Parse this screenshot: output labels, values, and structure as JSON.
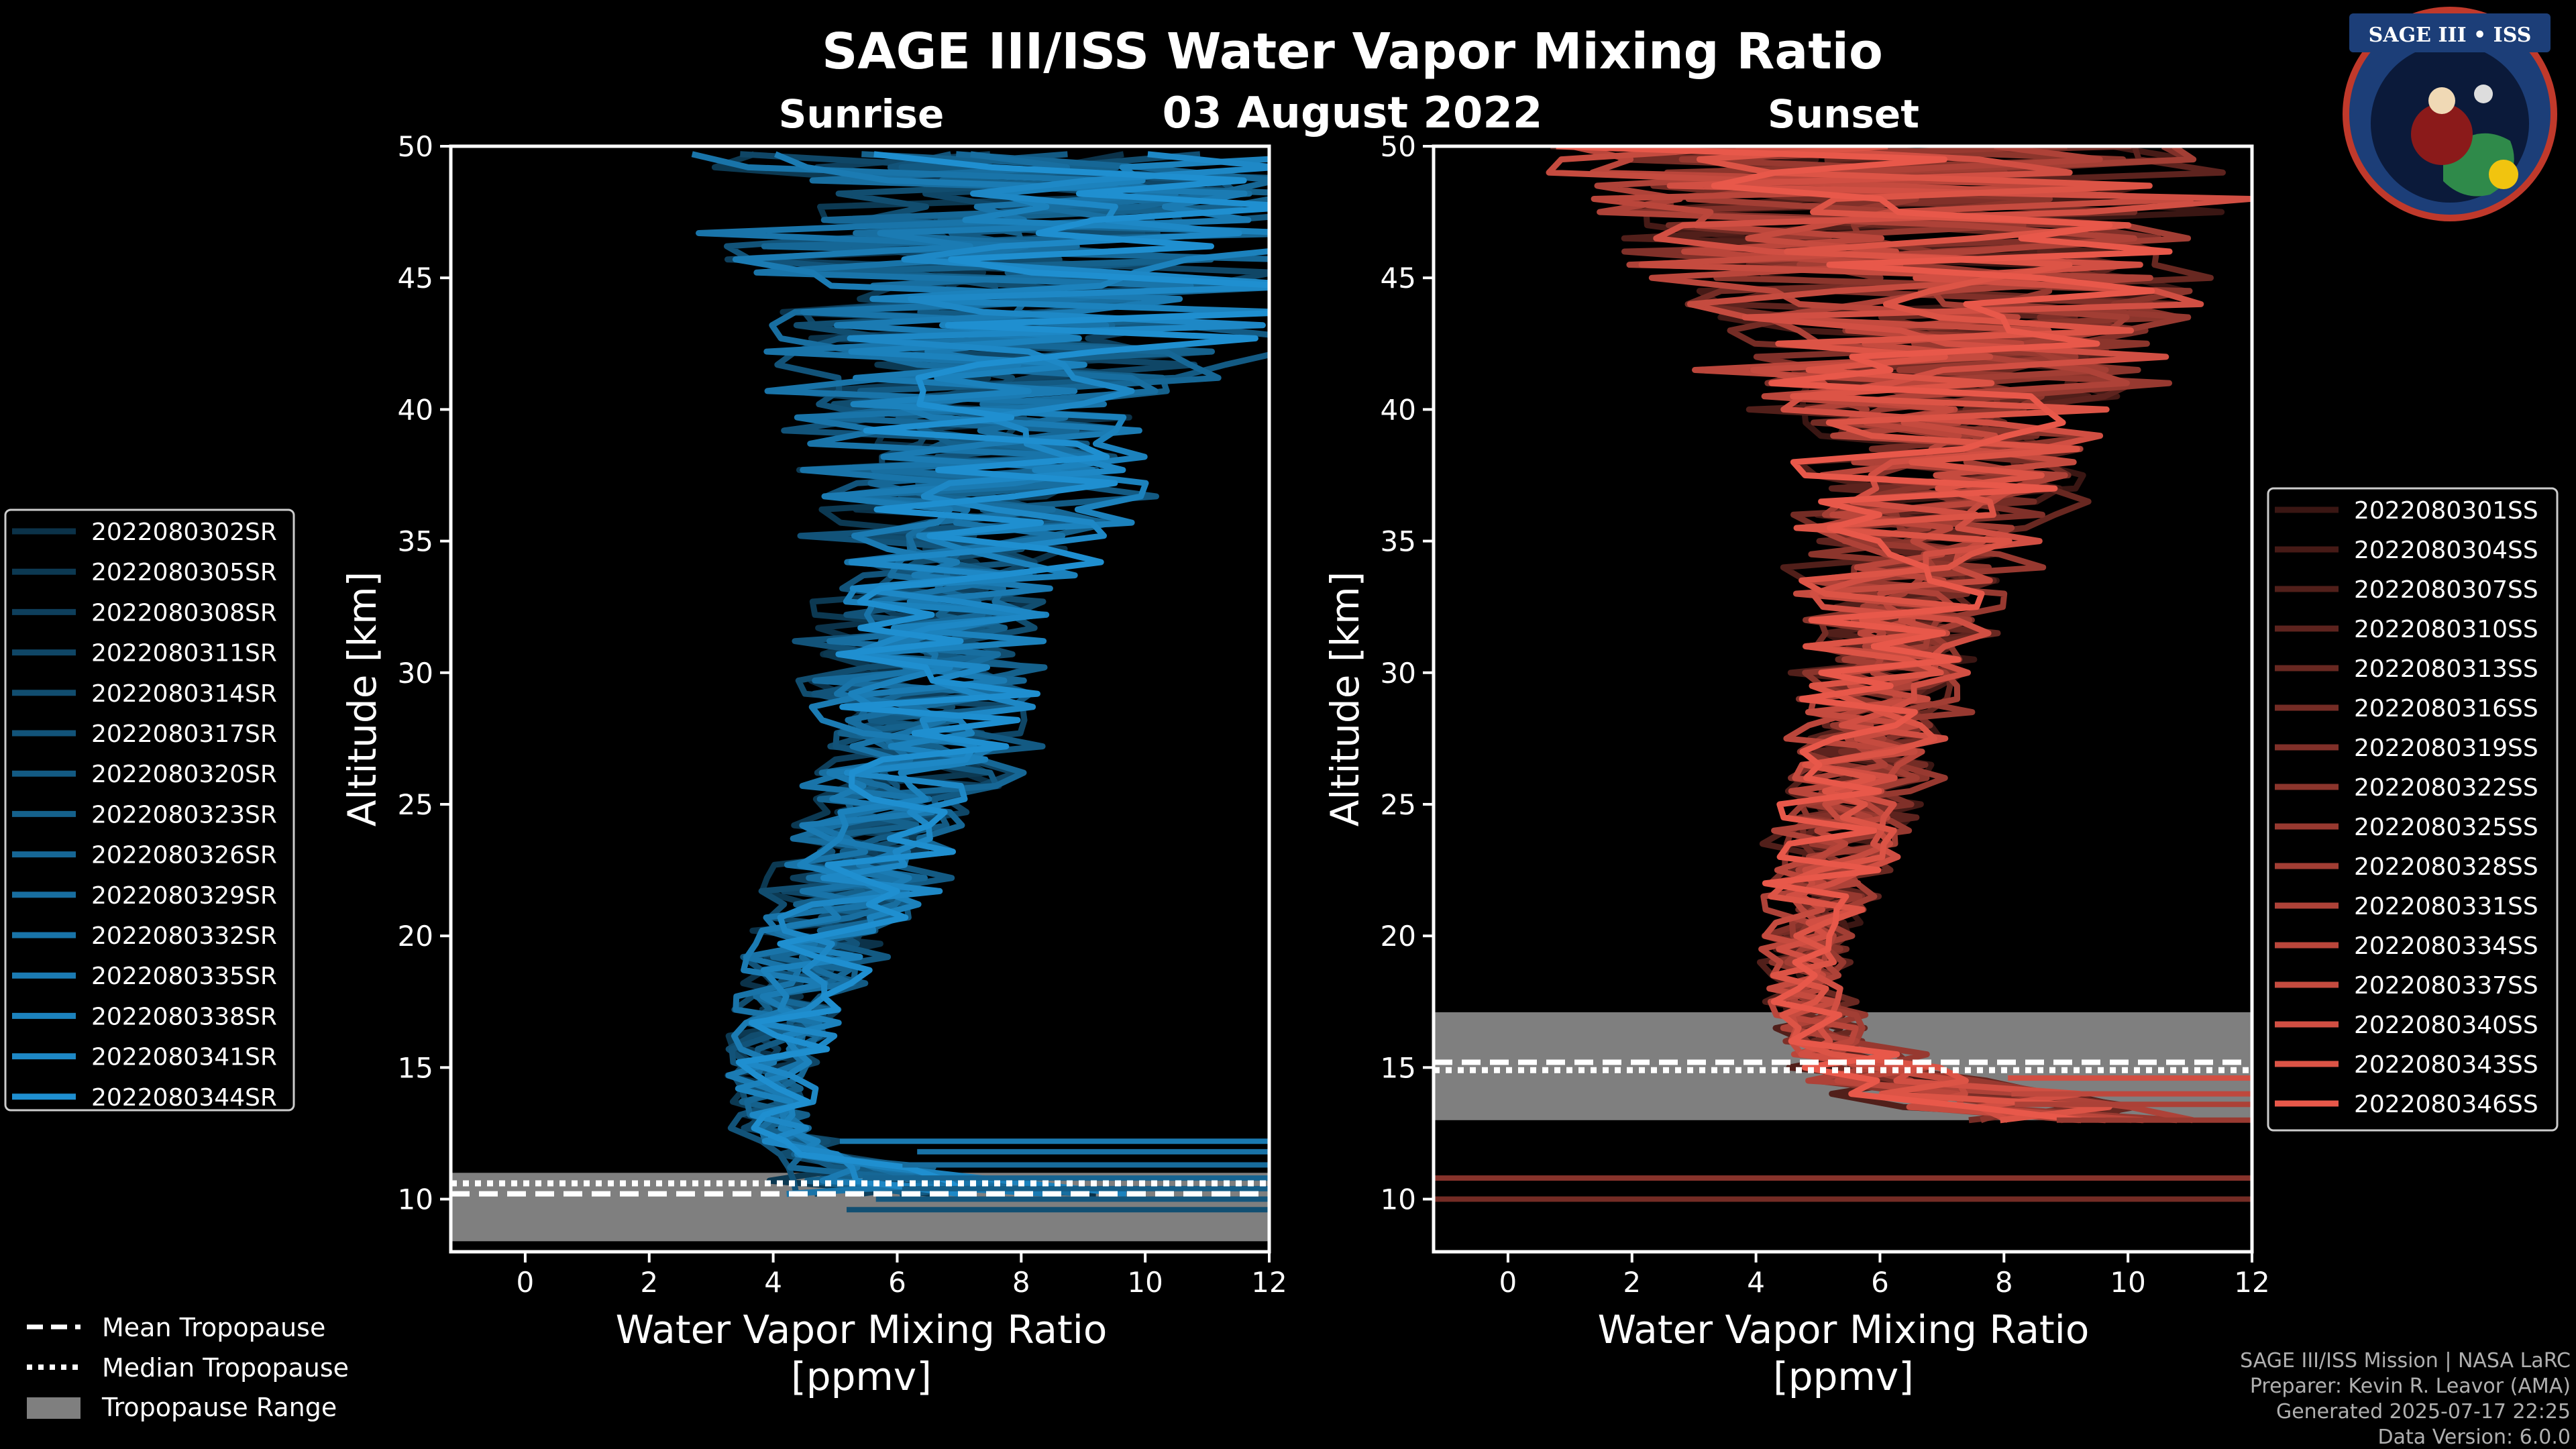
{
  "header": {
    "title": "SAGE III/ISS Water Vapor Mixing Ratio",
    "date": "03 August 2022"
  },
  "logo": {
    "text": "SAGE III • ISS",
    "icon": "mission-patch"
  },
  "legend_bottom": {
    "mean": "Mean Tropopause",
    "median": "Median Tropopause",
    "range": "Tropopause Range"
  },
  "credits": {
    "line1": "SAGE III/ISS Mission | NASA LaRC",
    "line2": "Preparer: Kevin R. Leavor (AMA)",
    "line3": "Generated 2025-07-17 22:25",
    "line4": "Data Version: 6.0.0"
  },
  "colors": {
    "sunrise": "#1f8fd0",
    "sunset": "#e8584a",
    "tropopause_range": "#7f7f7f",
    "background": "#000000"
  },
  "chart_data": [
    {
      "type": "line",
      "panel": "sunrise",
      "title": "Sunrise",
      "xlabel": "Water Vapor Mixing Ratio",
      "xlabel_units": "[ppmv]",
      "ylabel": "Altitude [km]",
      "xlim": [
        -1.2,
        12
      ],
      "ylim": [
        8,
        50
      ],
      "xticks": [
        "0",
        "2",
        "4",
        "6",
        "8",
        "10",
        "12"
      ],
      "yticks": [
        "10",
        "15",
        "20",
        "25",
        "30",
        "35",
        "40",
        "45",
        "50"
      ],
      "tropopause": {
        "range": [
          8.4,
          11.0
        ],
        "mean": 10.2,
        "median": 10.6
      },
      "series_names": [
        "2022080302SR",
        "2022080305SR",
        "2022080308SR",
        "2022080311SR",
        "2022080314SR",
        "2022080317SR",
        "2022080320SR",
        "2022080323SR",
        "2022080326SR",
        "2022080329SR",
        "2022080332SR",
        "2022080335SR",
        "2022080338SR",
        "2022080341SR",
        "2022080344SR"
      ],
      "profile_envelope": {
        "altitude": [
          10.2,
          11.5,
          13,
          15,
          17,
          20,
          23,
          26,
          30,
          33,
          36,
          40,
          45,
          50
        ],
        "center": [
          7.0,
          4.8,
          3.9,
          4.0,
          4.3,
          4.8,
          5.6,
          6.3,
          6.5,
          6.8,
          7.2,
          7.5,
          8.0,
          8.0
        ],
        "spread": [
          2.5,
          0.8,
          0.6,
          0.7,
          0.8,
          1.1,
          1.4,
          1.6,
          1.8,
          2.0,
          2.3,
          3.0,
          4.5,
          5.0
        ]
      }
    },
    {
      "type": "line",
      "panel": "sunset",
      "title": "Sunset",
      "xlabel": "Water Vapor Mixing Ratio",
      "xlabel_units": "[ppmv]",
      "ylabel": "Altitude [km]",
      "xlim": [
        -1.2,
        12
      ],
      "ylim": [
        8,
        50
      ],
      "xticks": [
        "0",
        "2",
        "4",
        "6",
        "8",
        "10",
        "12"
      ],
      "yticks": [
        "10",
        "15",
        "20",
        "25",
        "30",
        "35",
        "40",
        "45",
        "50"
      ],
      "tropopause": {
        "range": [
          13.0,
          17.1
        ],
        "mean": 15.2,
        "median": 14.9
      },
      "series_names": [
        "2022080301SS",
        "2022080304SS",
        "2022080307SS",
        "2022080310SS",
        "2022080313SS",
        "2022080316SS",
        "2022080319SS",
        "2022080322SS",
        "2022080325SS",
        "2022080328SS",
        "2022080331SS",
        "2022080334SS",
        "2022080337SS",
        "2022080340SS",
        "2022080343SS",
        "2022080346SS"
      ],
      "profile_envelope": {
        "altitude": [
          13,
          14.5,
          16,
          18,
          20,
          22,
          25,
          28,
          31,
          34,
          37,
          40,
          45,
          50
        ],
        "center": [
          9.5,
          6.5,
          5.2,
          4.8,
          4.9,
          5.1,
          5.6,
          6.0,
          6.2,
          6.5,
          7.0,
          7.2,
          7.0,
          6.5
        ],
        "spread": [
          2.5,
          1.5,
          0.7,
          0.6,
          0.7,
          0.9,
          1.1,
          1.2,
          1.4,
          1.7,
          2.2,
          3.0,
          4.5,
          5.5
        ]
      }
    }
  ]
}
